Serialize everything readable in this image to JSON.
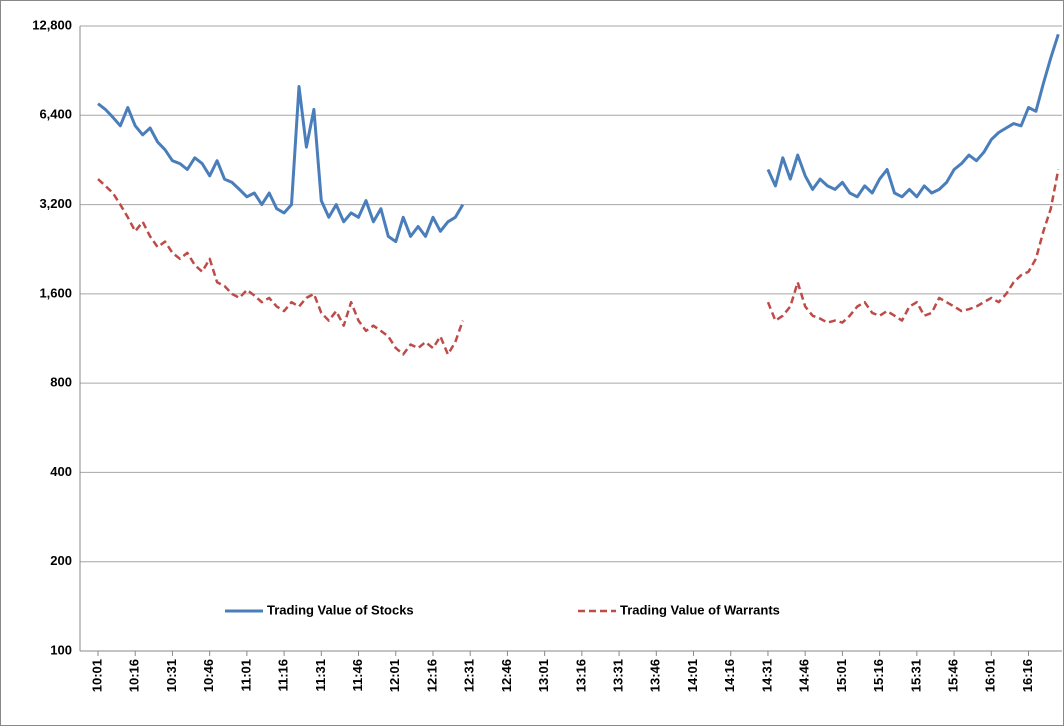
{
  "chart_data": {
    "type": "line",
    "ylog": true,
    "grid": true,
    "legend": "bottom",
    "ylim": [
      100,
      12800
    ],
    "yticks": [
      100,
      200,
      400,
      800,
      {
        "value": 1600,
        "label": "1,600"
      },
      {
        "value": 3200,
        "label": "3,200"
      },
      {
        "value": 6400,
        "label": "6,400"
      },
      {
        "value": 12800,
        "label": "12,800"
      }
    ],
    "categories": [
      "10:01",
      null,
      null,
      null,
      null,
      "10:16",
      null,
      null,
      null,
      null,
      "10:31",
      null,
      null,
      null,
      null,
      "10:46",
      null,
      null,
      null,
      null,
      "11:01",
      null,
      null,
      null,
      null,
      "11:16",
      null,
      null,
      null,
      null,
      "11:31",
      null,
      null,
      null,
      null,
      "11:46",
      null,
      null,
      null,
      null,
      "12:01",
      null,
      null,
      null,
      null,
      "12:16",
      null,
      null,
      null,
      null,
      "12:31",
      null,
      null,
      null,
      null,
      "12:46",
      null,
      null,
      null,
      null,
      "13:01",
      null,
      null,
      null,
      null,
      "13:16",
      null,
      null,
      null,
      null,
      "13:31",
      null,
      null,
      null,
      null,
      "13:46",
      null,
      null,
      null,
      null,
      "14:01",
      null,
      null,
      null,
      null,
      "14:16",
      null,
      null,
      null,
      null,
      "14:31",
      null,
      null,
      null,
      null,
      "14:46",
      null,
      null,
      null,
      null,
      "15:01",
      null,
      null,
      null,
      null,
      "15:16",
      null,
      null,
      null,
      null,
      "15:31",
      null,
      null,
      null,
      null,
      "15:46",
      null,
      null,
      null,
      null,
      "16:01",
      null,
      null,
      null,
      null,
      "16:16",
      null,
      null,
      null,
      null
    ],
    "series": [
      {
        "name": "Trading Value of Stocks",
        "color": "#4a7ebb",
        "dashed": false,
        "values": [
          7000,
          6700,
          6300,
          5900,
          6800,
          5900,
          5500,
          5800,
          5200,
          4900,
          4500,
          4400,
          4200,
          4600,
          4400,
          4000,
          4500,
          3900,
          3800,
          3600,
          3400,
          3500,
          3200,
          3500,
          3100,
          3000,
          3200,
          8000,
          5000,
          6700,
          3300,
          2900,
          3200,
          2800,
          3000,
          2900,
          3300,
          2800,
          3100,
          2500,
          2400,
          2900,
          2500,
          2700,
          2500,
          2900,
          2600,
          2800,
          2900,
          3200,
          null,
          null,
          null,
          null,
          null,
          null,
          null,
          null,
          null,
          null,
          null,
          null,
          null,
          null,
          null,
          null,
          null,
          null,
          null,
          null,
          null,
          null,
          null,
          null,
          null,
          null,
          null,
          null,
          null,
          null,
          null,
          null,
          null,
          null,
          null,
          null,
          null,
          null,
          null,
          null,
          4200,
          3700,
          4600,
          3900,
          4700,
          4000,
          3600,
          3900,
          3700,
          3600,
          3800,
          3500,
          3400,
          3700,
          3500,
          3900,
          4200,
          3500,
          3400,
          3600,
          3400,
          3700,
          3500,
          3600,
          3800,
          4200,
          4400,
          4700,
          4500,
          4800,
          5300,
          5600,
          5800,
          6000,
          5900,
          6800,
          6600,
          8200,
          10000,
          12000
        ]
      },
      {
        "name": "Trading Value of Warrants",
        "color": "#be4b48",
        "dashed": true,
        "values": [
          3900,
          3700,
          3500,
          3200,
          2900,
          2600,
          2800,
          2500,
          2300,
          2400,
          2200,
          2100,
          2200,
          2000,
          1900,
          2100,
          1750,
          1700,
          1600,
          1550,
          1650,
          1580,
          1500,
          1550,
          1450,
          1400,
          1500,
          1450,
          1550,
          1600,
          1380,
          1300,
          1400,
          1250,
          1500,
          1300,
          1200,
          1250,
          1200,
          1150,
          1050,
          1000,
          1080,
          1050,
          1100,
          1050,
          1150,
          1000,
          1100,
          1300,
          null,
          null,
          null,
          null,
          null,
          null,
          null,
          null,
          null,
          null,
          null,
          null,
          null,
          null,
          null,
          null,
          null,
          null,
          null,
          null,
          null,
          null,
          null,
          null,
          null,
          null,
          null,
          null,
          null,
          null,
          null,
          null,
          null,
          null,
          null,
          null,
          null,
          null,
          null,
          null,
          1500,
          1300,
          1350,
          1450,
          1750,
          1450,
          1350,
          1320,
          1280,
          1300,
          1280,
          1350,
          1450,
          1500,
          1380,
          1350,
          1400,
          1350,
          1300,
          1450,
          1500,
          1350,
          1380,
          1550,
          1500,
          1450,
          1400,
          1420,
          1450,
          1500,
          1550,
          1500,
          1600,
          1750,
          1850,
          1900,
          2100,
          2600,
          3100,
          4200
        ]
      }
    ]
  }
}
